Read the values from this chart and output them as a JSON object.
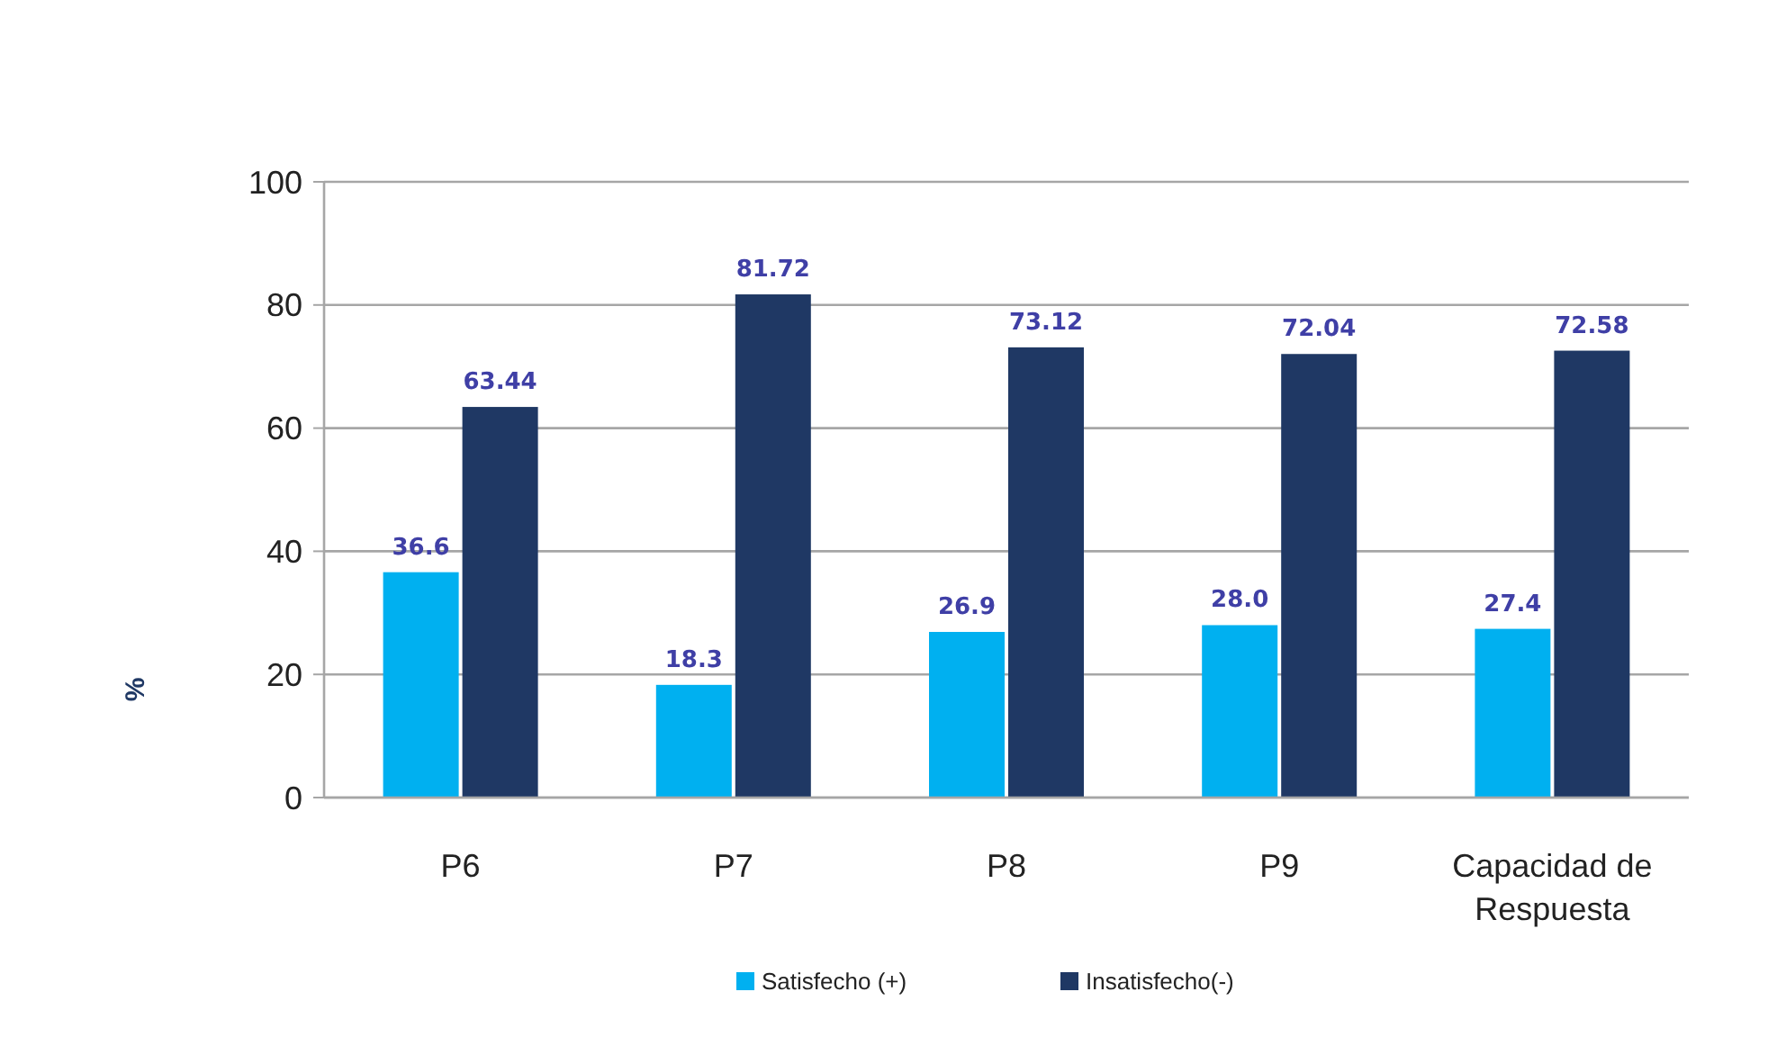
{
  "chart_data": {
    "type": "bar",
    "ylabel": "%",
    "categories": [
      "P6",
      "P7",
      "P8",
      "P9",
      "Capacidad de Respuesta"
    ],
    "series": [
      {
        "name": "Satisfecho (+)",
        "color": "#00b0f0",
        "values": [
          36.6,
          18.3,
          26.9,
          28.0,
          27.4
        ],
        "value_labels": [
          "36.6",
          "18.3",
          "26.9",
          "28.0",
          "27.4"
        ]
      },
      {
        "name": "Insatisfecho(-)",
        "color": "#1f3864",
        "values": [
          63.44,
          81.72,
          73.12,
          72.04,
          72.58
        ],
        "value_labels": [
          "63.44",
          "81.72",
          "73.12",
          "72.04",
          "72.58"
        ]
      }
    ],
    "ylim": [
      0,
      100
    ],
    "yticks": [
      0,
      20,
      40,
      60,
      80,
      100
    ],
    "grid": "y",
    "legend": "bottom"
  }
}
